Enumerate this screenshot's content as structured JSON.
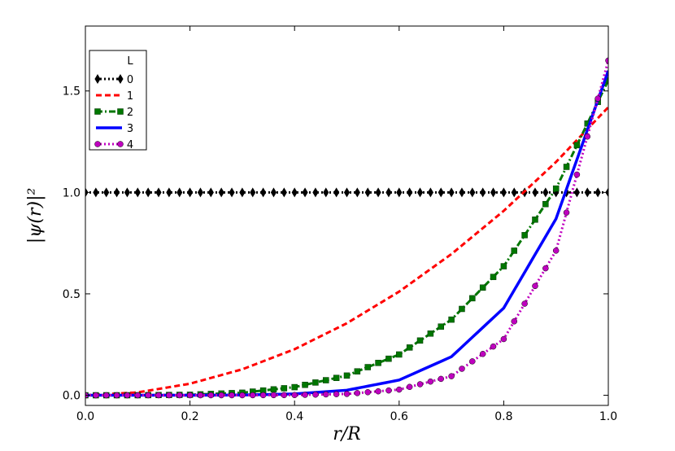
{
  "chart_data": {
    "type": "line",
    "xlabel": "r/R",
    "ylabel": "|ψ(r)|²",
    "xlim": [
      0.0,
      1.0
    ],
    "ylim": [
      -0.05,
      1.82
    ],
    "xticks": [
      0.0,
      0.2,
      0.4,
      0.6,
      0.8,
      1.0
    ],
    "xtick_labels": [
      "0.0",
      "0.2",
      "0.4",
      "0.6",
      "0.8",
      "1.0"
    ],
    "yticks": [
      0.0,
      0.5,
      1.0,
      1.5
    ],
    "ytick_labels": [
      "0.0",
      "0.5",
      "1.0",
      "1.5"
    ],
    "grid": false,
    "legend_title": "L",
    "legend_position": "top-left",
    "series": [
      {
        "name": "0",
        "color": "#000000",
        "linestyle": "dotted",
        "marker": "diamond",
        "x": [
          0.0,
          0.1,
          0.2,
          0.3,
          0.4,
          0.5,
          0.6,
          0.7,
          0.8,
          0.9,
          1.0
        ],
        "y": [
          1.0,
          1.0,
          1.0,
          1.0,
          1.0,
          1.0,
          1.0,
          1.0,
          1.0,
          1.0,
          1.0
        ]
      },
      {
        "name": "1",
        "color": "#ff0000",
        "linestyle": "dashed",
        "marker": "none",
        "x": [
          0.0,
          0.1,
          0.2,
          0.3,
          0.4,
          0.5,
          0.6,
          0.7,
          0.8,
          0.9,
          1.0
        ],
        "y": [
          0.0,
          0.014,
          0.057,
          0.128,
          0.227,
          0.355,
          0.511,
          0.696,
          0.909,
          1.15,
          1.42
        ]
      },
      {
        "name": "2",
        "color": "#007700",
        "linestyle": "dashdot",
        "marker": "square",
        "x": [
          0.0,
          0.1,
          0.2,
          0.3,
          0.4,
          0.5,
          0.6,
          0.7,
          0.8,
          0.9,
          1.0
        ],
        "y": [
          0.0,
          0.0002,
          0.0025,
          0.0126,
          0.04,
          0.097,
          0.201,
          0.373,
          0.636,
          1.019,
          1.553
        ]
      },
      {
        "name": "3",
        "color": "#0000ff",
        "linestyle": "solid",
        "marker": "none",
        "x": [
          0.0,
          0.1,
          0.2,
          0.3,
          0.4,
          0.5,
          0.6,
          0.7,
          0.8,
          0.9,
          1.0
        ],
        "y": [
          0.0,
          0.0,
          0.0001,
          0.0012,
          0.0066,
          0.025,
          0.075,
          0.19,
          0.43,
          0.87,
          1.6
        ]
      },
      {
        "name": "4",
        "color": "#bf00bf",
        "linestyle": "dotted",
        "marker": "circle",
        "x": [
          0.0,
          0.1,
          0.2,
          0.3,
          0.4,
          0.5,
          0.6,
          0.7,
          0.8,
          0.9,
          1.0
        ],
        "y": [
          0.0,
          0.0,
          0.0,
          0.0001,
          0.0011,
          0.0065,
          0.028,
          0.094,
          0.277,
          0.713,
          1.65
        ]
      }
    ]
  }
}
